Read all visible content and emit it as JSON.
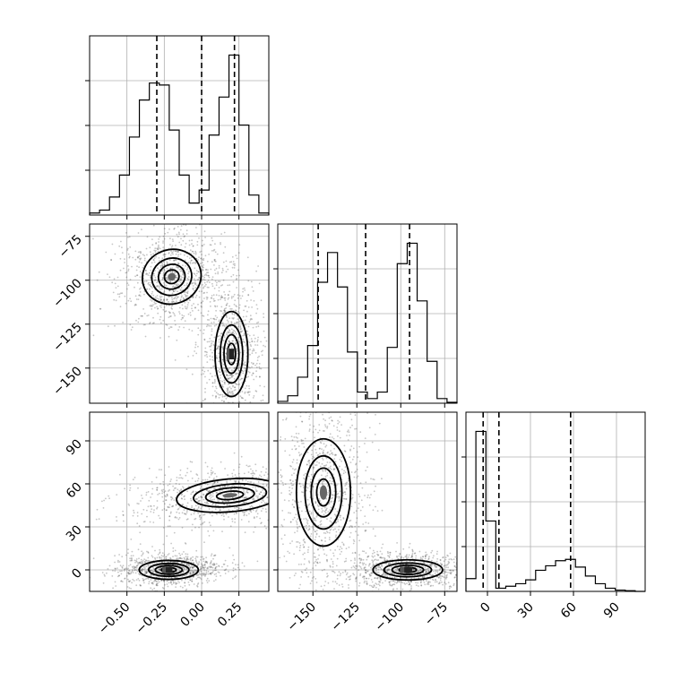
{
  "chart_data": {
    "type": "corner",
    "parameters": [
      {
        "id": "p1",
        "range": [
          -0.75,
          0.45
        ],
        "ticks": [
          -0.5,
          -0.25,
          0.0,
          0.25
        ],
        "tick_labels": [
          "−0.50",
          "−0.25",
          "0.00",
          "0.25"
        ],
        "quantiles": [
          -0.3,
          0.0,
          0.22
        ],
        "histogram": {
          "bin_edges": [
            -0.75,
            -0.6833,
            -0.6167,
            -0.55,
            -0.4833,
            -0.4167,
            -0.35,
            -0.2833,
            -0.2167,
            -0.15,
            -0.0833,
            -0.0167,
            0.05,
            0.1167,
            0.1833,
            0.25,
            0.3167,
            0.3833,
            0.45
          ],
          "counts": [
            2,
            5,
            18,
            40,
            78,
            115,
            132,
            130,
            85,
            40,
            12,
            25,
            80,
            118,
            160,
            90,
            20,
            2
          ]
        }
      },
      {
        "id": "p2",
        "range": [
          -170,
          -68
        ],
        "ticks": [
          -150,
          -125,
          -100,
          -75
        ],
        "tick_labels": [
          "−150",
          "−125",
          "−100",
          "−75"
        ],
        "quantiles": [
          -147,
          -120,
          -95
        ],
        "histogram": {
          "bin_edges": [
            -170,
            -164.33,
            -158.67,
            -153,
            -147.33,
            -141.67,
            -136,
            -130.33,
            -124.67,
            -119,
            -113.33,
            -107.67,
            -102,
            -96.33,
            -90.67,
            -85,
            -79.33,
            -73.67,
            -68
          ],
          "counts": [
            2,
            8,
            28,
            62,
            130,
            162,
            125,
            55,
            12,
            5,
            12,
            60,
            150,
            172,
            110,
            45,
            5,
            1
          ]
        }
      },
      {
        "id": "p3",
        "range": [
          -15,
          110
        ],
        "ticks": [
          0,
          30,
          60,
          90
        ],
        "tick_labels": [
          "0",
          "30",
          "60",
          "90"
        ],
        "quantiles": [
          -3,
          8,
          58
        ],
        "histogram": {
          "bin_edges": [
            -15,
            -8.06,
            -1.11,
            5.83,
            12.78,
            19.72,
            26.67,
            33.61,
            40.56,
            47.5,
            54.44,
            61.39,
            68.33,
            75.28,
            82.22,
            89.17,
            96.11,
            103.06,
            110
          ],
          "counts": [
            20,
            250,
            110,
            5,
            8,
            12,
            18,
            33,
            40,
            48,
            50,
            38,
            24,
            12,
            5,
            2,
            1,
            0
          ]
        }
      }
    ],
    "contour_pairs": [
      {
        "x_param": "p1",
        "y_param": "p2",
        "modes": [
          {
            "center": [
              -0.2,
              -98
            ],
            "sx": 0.09,
            "sy": 7,
            "tilt": -20,
            "dark_core": false
          },
          {
            "center": [
              0.2,
              -142
            ],
            "sx": 0.05,
            "sy": 11,
            "tilt": 0,
            "dark_core": true
          }
        ]
      },
      {
        "x_param": "p1",
        "y_param": "p3",
        "modes": [
          {
            "center": [
              -0.22,
              0
            ],
            "sx": 0.09,
            "sy": 3,
            "tilt": 0,
            "dark_core": true
          },
          {
            "center": [
              0.19,
              52
            ],
            "sx": 0.05,
            "sy": 17,
            "tilt": 85,
            "dark_core": false
          }
        ]
      },
      {
        "x_param": "p2",
        "y_param": "p3",
        "modes": [
          {
            "center": [
              -144,
              54
            ],
            "sx": 7,
            "sy": 17,
            "tilt": 0,
            "dark_core": false
          },
          {
            "center": [
              -96,
              0
            ],
            "sx": 9,
            "sy": 3.2,
            "tilt": 0,
            "dark_core": true
          }
        ]
      }
    ],
    "grid": true,
    "colors": {
      "ink": "#000000",
      "grid": "#b0b0b0",
      "scatter": "#333333"
    }
  }
}
